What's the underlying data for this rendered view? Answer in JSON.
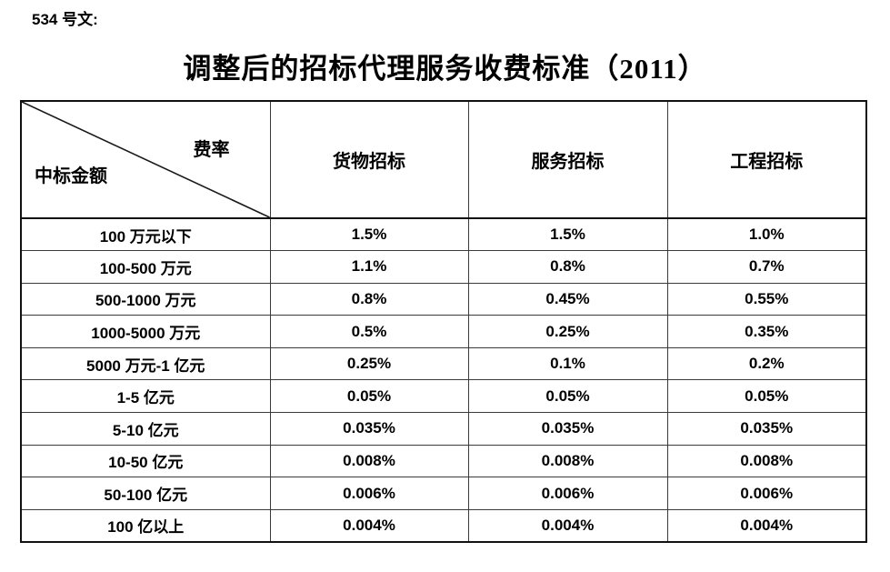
{
  "document": {
    "doc_number_label": "534 号文:",
    "title": "调整后的招标代理服务收费标准（2011）"
  },
  "colors": {
    "background": "#ffffff",
    "text": "#000000",
    "table_border": "#000000"
  },
  "table": {
    "corner": {
      "rate_label": "费率",
      "amount_label": "中标金额"
    },
    "columns": [
      "货物招标",
      "服务招标",
      "工程招标"
    ],
    "rows": [
      {
        "label": "100 万元以下",
        "values": [
          "1.5%",
          "1.5%",
          "1.0%"
        ]
      },
      {
        "label": "100-500 万元",
        "values": [
          "1.1%",
          "0.8%",
          "0.7%"
        ]
      },
      {
        "label": "500-1000 万元",
        "values": [
          "0.8%",
          "0.45%",
          "0.55%"
        ]
      },
      {
        "label": "1000-5000 万元",
        "values": [
          "0.5%",
          "0.25%",
          "0.35%"
        ]
      },
      {
        "label": "5000 万元-1 亿元",
        "values": [
          "0.25%",
          "0.1%",
          "0.2%"
        ]
      },
      {
        "label": "1-5 亿元",
        "values": [
          "0.05%",
          "0.05%",
          "0.05%"
        ]
      },
      {
        "label": "5-10 亿元",
        "values": [
          "0.035%",
          "0.035%",
          "0.035%"
        ]
      },
      {
        "label": "10-50 亿元",
        "values": [
          "0.008%",
          "0.008%",
          "0.008%"
        ]
      },
      {
        "label": "50-100 亿元",
        "values": [
          "0.006%",
          "0.006%",
          "0.006%"
        ]
      },
      {
        "label": "100 亿以上",
        "values": [
          "0.004%",
          "0.004%",
          "0.004%"
        ]
      }
    ]
  }
}
